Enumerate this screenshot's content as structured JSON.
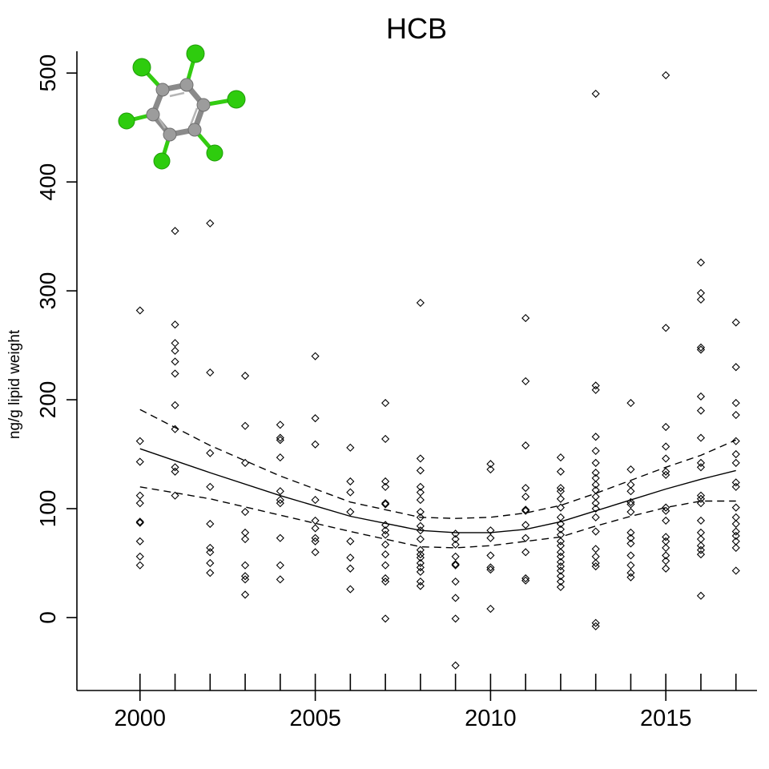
{
  "chart_data": {
    "type": "scatter",
    "title": "HCB",
    "xlabel": "",
    "ylabel": "ng/g lipid weight",
    "xlim": [
      1998.2,
      2017.6
    ],
    "ylim": [
      -67,
      520
    ],
    "xticks": [
      2000,
      2005,
      2010,
      2015
    ],
    "xtick_labels": [
      "2000",
      "2005",
      "2010",
      "2015"
    ],
    "yticks": [
      0,
      100,
      200,
      300,
      400,
      500
    ],
    "ytick_labels": [
      "0",
      "100",
      "200",
      "300",
      "400",
      "500"
    ],
    "year_marks": [
      2000,
      2001,
      2002,
      2003,
      2004,
      2005,
      2006,
      2007,
      2008,
      2009,
      2010,
      2011,
      2012,
      2013,
      2014,
      2015,
      2016,
      2017
    ],
    "grid": false,
    "legend": "none",
    "inset_image": "hexachlorobenzene-molecule",
    "series": [
      {
        "kind": "points",
        "marker": "open-diamond",
        "points": [
          [
            2000,
            282
          ],
          [
            2000,
            162
          ],
          [
            2000,
            143
          ],
          [
            2000,
            112
          ],
          [
            2000,
            105
          ],
          [
            2000,
            88
          ],
          [
            2000,
            87
          ],
          [
            2000,
            70
          ],
          [
            2000,
            56
          ],
          [
            2000,
            48
          ],
          [
            2001,
            355
          ],
          [
            2001,
            269
          ],
          [
            2001,
            252
          ],
          [
            2001,
            245
          ],
          [
            2001,
            235
          ],
          [
            2001,
            224
          ],
          [
            2001,
            195
          ],
          [
            2001,
            173
          ],
          [
            2001,
            138
          ],
          [
            2001,
            134
          ],
          [
            2001,
            112
          ],
          [
            2002,
            362
          ],
          [
            2002,
            225
          ],
          [
            2002,
            151
          ],
          [
            2002,
            120
          ],
          [
            2002,
            86
          ],
          [
            2002,
            64
          ],
          [
            2002,
            60
          ],
          [
            2002,
            50
          ],
          [
            2002,
            41
          ],
          [
            2003,
            222
          ],
          [
            2003,
            176
          ],
          [
            2003,
            142
          ],
          [
            2003,
            97
          ],
          [
            2003,
            78
          ],
          [
            2003,
            72
          ],
          [
            2003,
            48
          ],
          [
            2003,
            38
          ],
          [
            2003,
            35
          ],
          [
            2003,
            21
          ],
          [
            2004,
            177
          ],
          [
            2004,
            165
          ],
          [
            2004,
            163
          ],
          [
            2004,
            147
          ],
          [
            2004,
            116
          ],
          [
            2004,
            108
          ],
          [
            2004,
            105
          ],
          [
            2004,
            73
          ],
          [
            2004,
            48
          ],
          [
            2004,
            35
          ],
          [
            2005,
            240
          ],
          [
            2005,
            183
          ],
          [
            2005,
            159
          ],
          [
            2005,
            108
          ],
          [
            2005,
            89
          ],
          [
            2005,
            82
          ],
          [
            2005,
            73
          ],
          [
            2005,
            70
          ],
          [
            2005,
            60
          ],
          [
            2006,
            156
          ],
          [
            2006,
            125
          ],
          [
            2006,
            115
          ],
          [
            2006,
            97
          ],
          [
            2006,
            70
          ],
          [
            2006,
            55
          ],
          [
            2006,
            45
          ],
          [
            2006,
            26
          ],
          [
            2007,
            197
          ],
          [
            2007,
            164
          ],
          [
            2007,
            125
          ],
          [
            2007,
            120
          ],
          [
            2007,
            105
          ],
          [
            2007,
            104
          ],
          [
            2007,
            85
          ],
          [
            2007,
            80
          ],
          [
            2007,
            76
          ],
          [
            2007,
            67
          ],
          [
            2007,
            58
          ],
          [
            2007,
            48
          ],
          [
            2007,
            36
          ],
          [
            2007,
            33
          ],
          [
            2007,
            -1
          ],
          [
            2008,
            289
          ],
          [
            2008,
            146
          ],
          [
            2008,
            135
          ],
          [
            2008,
            120
          ],
          [
            2008,
            115
          ],
          [
            2008,
            108
          ],
          [
            2008,
            97
          ],
          [
            2008,
            92
          ],
          [
            2008,
            84
          ],
          [
            2008,
            80
          ],
          [
            2008,
            72
          ],
          [
            2008,
            62
          ],
          [
            2008,
            58
          ],
          [
            2008,
            55
          ],
          [
            2008,
            50
          ],
          [
            2008,
            46
          ],
          [
            2008,
            42
          ],
          [
            2008,
            33
          ],
          [
            2008,
            29
          ],
          [
            2009,
            77
          ],
          [
            2009,
            72
          ],
          [
            2009,
            67
          ],
          [
            2009,
            56
          ],
          [
            2009,
            49
          ],
          [
            2009,
            48
          ],
          [
            2009,
            33
          ],
          [
            2009,
            18
          ],
          [
            2009,
            -1
          ],
          [
            2009,
            -44
          ],
          [
            2010,
            141
          ],
          [
            2010,
            136
          ],
          [
            2010,
            80
          ],
          [
            2010,
            73
          ],
          [
            2010,
            57
          ],
          [
            2010,
            46
          ],
          [
            2010,
            44
          ],
          [
            2010,
            8
          ],
          [
            2011,
            275
          ],
          [
            2011,
            217
          ],
          [
            2011,
            158
          ],
          [
            2011,
            119
          ],
          [
            2011,
            111
          ],
          [
            2011,
            99
          ],
          [
            2011,
            98
          ],
          [
            2011,
            85
          ],
          [
            2011,
            73
          ],
          [
            2011,
            60
          ],
          [
            2011,
            36
          ],
          [
            2011,
            34
          ],
          [
            2012,
            147
          ],
          [
            2012,
            134
          ],
          [
            2012,
            119
          ],
          [
            2012,
            116
          ],
          [
            2012,
            109
          ],
          [
            2012,
            101
          ],
          [
            2012,
            92
          ],
          [
            2012,
            86
          ],
          [
            2012,
            81
          ],
          [
            2012,
            76
          ],
          [
            2012,
            70
          ],
          [
            2012,
            66
          ],
          [
            2012,
            60
          ],
          [
            2012,
            56
          ],
          [
            2012,
            51
          ],
          [
            2012,
            47
          ],
          [
            2012,
            43
          ],
          [
            2012,
            38
          ],
          [
            2012,
            33
          ],
          [
            2012,
            28
          ],
          [
            2013,
            481
          ],
          [
            2013,
            213
          ],
          [
            2013,
            209
          ],
          [
            2013,
            166
          ],
          [
            2013,
            153
          ],
          [
            2013,
            142
          ],
          [
            2013,
            133
          ],
          [
            2013,
            128
          ],
          [
            2013,
            122
          ],
          [
            2013,
            117
          ],
          [
            2013,
            111
          ],
          [
            2013,
            105
          ],
          [
            2013,
            100
          ],
          [
            2013,
            92
          ],
          [
            2013,
            79
          ],
          [
            2013,
            63
          ],
          [
            2013,
            56
          ],
          [
            2013,
            50
          ],
          [
            2013,
            47
          ],
          [
            2013,
            -5
          ],
          [
            2013,
            -8
          ],
          [
            2014,
            197
          ],
          [
            2014,
            136
          ],
          [
            2014,
            122
          ],
          [
            2014,
            116
          ],
          [
            2014,
            106
          ],
          [
            2014,
            104
          ],
          [
            2014,
            97
          ],
          [
            2014,
            78
          ],
          [
            2014,
            73
          ],
          [
            2014,
            68
          ],
          [
            2014,
            57
          ],
          [
            2014,
            48
          ],
          [
            2014,
            41
          ],
          [
            2014,
            37
          ],
          [
            2015,
            498
          ],
          [
            2015,
            266
          ],
          [
            2015,
            175
          ],
          [
            2015,
            157
          ],
          [
            2015,
            146
          ],
          [
            2015,
            134
          ],
          [
            2015,
            131
          ],
          [
            2015,
            101
          ],
          [
            2015,
            98
          ],
          [
            2015,
            89
          ],
          [
            2015,
            74
          ],
          [
            2015,
            70
          ],
          [
            2015,
            64
          ],
          [
            2015,
            57
          ],
          [
            2015,
            52
          ],
          [
            2015,
            45
          ],
          [
            2016,
            326
          ],
          [
            2016,
            298
          ],
          [
            2016,
            292
          ],
          [
            2016,
            248
          ],
          [
            2016,
            246
          ],
          [
            2016,
            203
          ],
          [
            2016,
            190
          ],
          [
            2016,
            165
          ],
          [
            2016,
            142
          ],
          [
            2016,
            138
          ],
          [
            2016,
            112
          ],
          [
            2016,
            109
          ],
          [
            2016,
            105
          ],
          [
            2016,
            89
          ],
          [
            2016,
            78
          ],
          [
            2016,
            72
          ],
          [
            2016,
            66
          ],
          [
            2016,
            62
          ],
          [
            2016,
            58
          ],
          [
            2016,
            20
          ],
          [
            2017,
            271
          ],
          [
            2017,
            230
          ],
          [
            2017,
            197
          ],
          [
            2017,
            186
          ],
          [
            2017,
            162
          ],
          [
            2017,
            150
          ],
          [
            2017,
            142
          ],
          [
            2017,
            124
          ],
          [
            2017,
            120
          ],
          [
            2017,
            101
          ],
          [
            2017,
            92
          ],
          [
            2017,
            86
          ],
          [
            2017,
            79
          ],
          [
            2017,
            75
          ],
          [
            2017,
            70
          ],
          [
            2017,
            64
          ],
          [
            2017,
            43
          ]
        ]
      },
      {
        "kind": "line",
        "style": "solid",
        "points": [
          [
            2000,
            155
          ],
          [
            2002,
            133
          ],
          [
            2004,
            112
          ],
          [
            2006,
            93
          ],
          [
            2008,
            80
          ],
          [
            2009,
            78
          ],
          [
            2010,
            78
          ],
          [
            2011,
            81
          ],
          [
            2012,
            88
          ],
          [
            2013,
            98
          ],
          [
            2014,
            108
          ],
          [
            2015,
            118
          ],
          [
            2016,
            127
          ],
          [
            2017,
            135
          ]
        ]
      },
      {
        "kind": "line",
        "style": "dashed",
        "points": [
          [
            2000,
            191
          ],
          [
            2002,
            158
          ],
          [
            2004,
            130
          ],
          [
            2006,
            106
          ],
          [
            2008,
            92
          ],
          [
            2009,
            91
          ],
          [
            2010,
            92
          ],
          [
            2011,
            96
          ],
          [
            2012,
            103
          ],
          [
            2013,
            114
          ],
          [
            2014,
            126
          ],
          [
            2015,
            138
          ],
          [
            2016,
            149
          ],
          [
            2017,
            163
          ]
        ]
      },
      {
        "kind": "line",
        "style": "dashed",
        "points": [
          [
            2000,
            120
          ],
          [
            2002,
            109
          ],
          [
            2004,
            94
          ],
          [
            2006,
            79
          ],
          [
            2008,
            65
          ],
          [
            2009,
            64
          ],
          [
            2010,
            66
          ],
          [
            2011,
            70
          ],
          [
            2012,
            74
          ],
          [
            2013,
            84
          ],
          [
            2014,
            93
          ],
          [
            2015,
            101
          ],
          [
            2016,
            107
          ],
          [
            2017,
            107
          ]
        ]
      }
    ]
  }
}
